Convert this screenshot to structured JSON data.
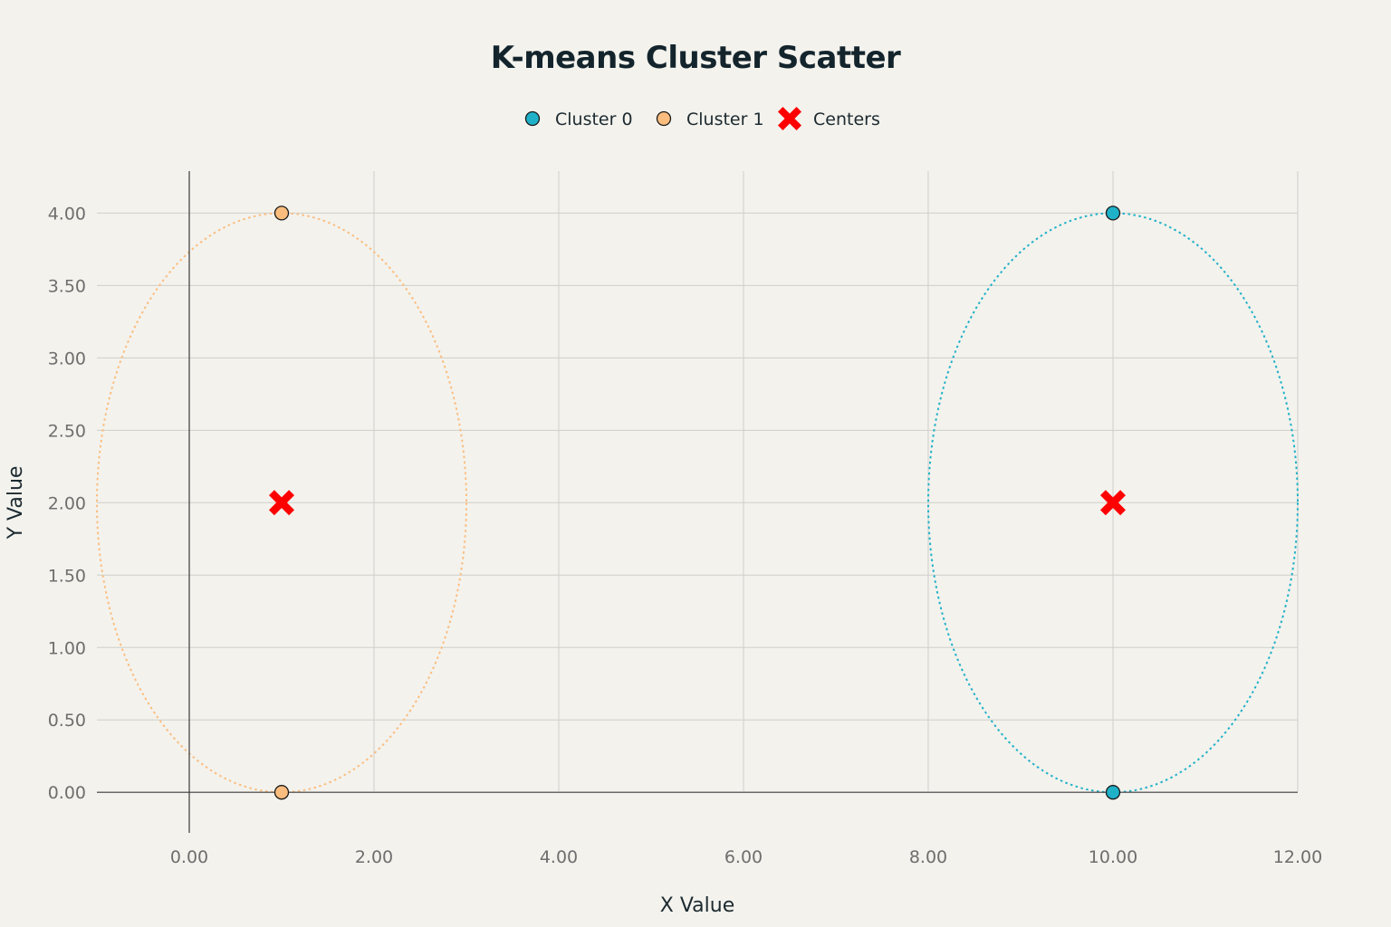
{
  "chart_data": {
    "type": "scatter",
    "title": "K-means Cluster Scatter",
    "xlabel": "X Value",
    "ylabel": "Y Value",
    "xlim": [
      -1,
      12
    ],
    "ylim": [
      -0.28,
      4.29
    ],
    "xticks": [
      0,
      2,
      4,
      6,
      8,
      10,
      12
    ],
    "yticks": [
      0,
      0.5,
      1,
      1.5,
      2,
      2.5,
      3,
      3.5,
      4
    ],
    "tick_decimals": 2,
    "grid": true,
    "legend_position": "top-center",
    "series": [
      {
        "name": "Cluster 0",
        "color": "#1fb1c8",
        "marker": "circle",
        "x": [
          10,
          10
        ],
        "y": [
          4,
          0
        ]
      },
      {
        "name": "Cluster 1",
        "color": "#fbbd7e",
        "marker": "circle",
        "x": [
          1,
          1
        ],
        "y": [
          4,
          0
        ]
      },
      {
        "name": "Centers",
        "color": "#ff0000",
        "marker": "x",
        "x": [
          1,
          10
        ],
        "y": [
          2,
          2
        ]
      }
    ],
    "ellipses": [
      {
        "cluster": "Cluster 1",
        "color": "#fbbd7e",
        "cx": 1,
        "cy": 2,
        "rx": 2,
        "ry": 2,
        "style": "dotted"
      },
      {
        "cluster": "Cluster 0",
        "color": "#1fb1c8",
        "cx": 10,
        "cy": 2,
        "rx": 2,
        "ry": 2,
        "style": "dotted"
      }
    ]
  }
}
